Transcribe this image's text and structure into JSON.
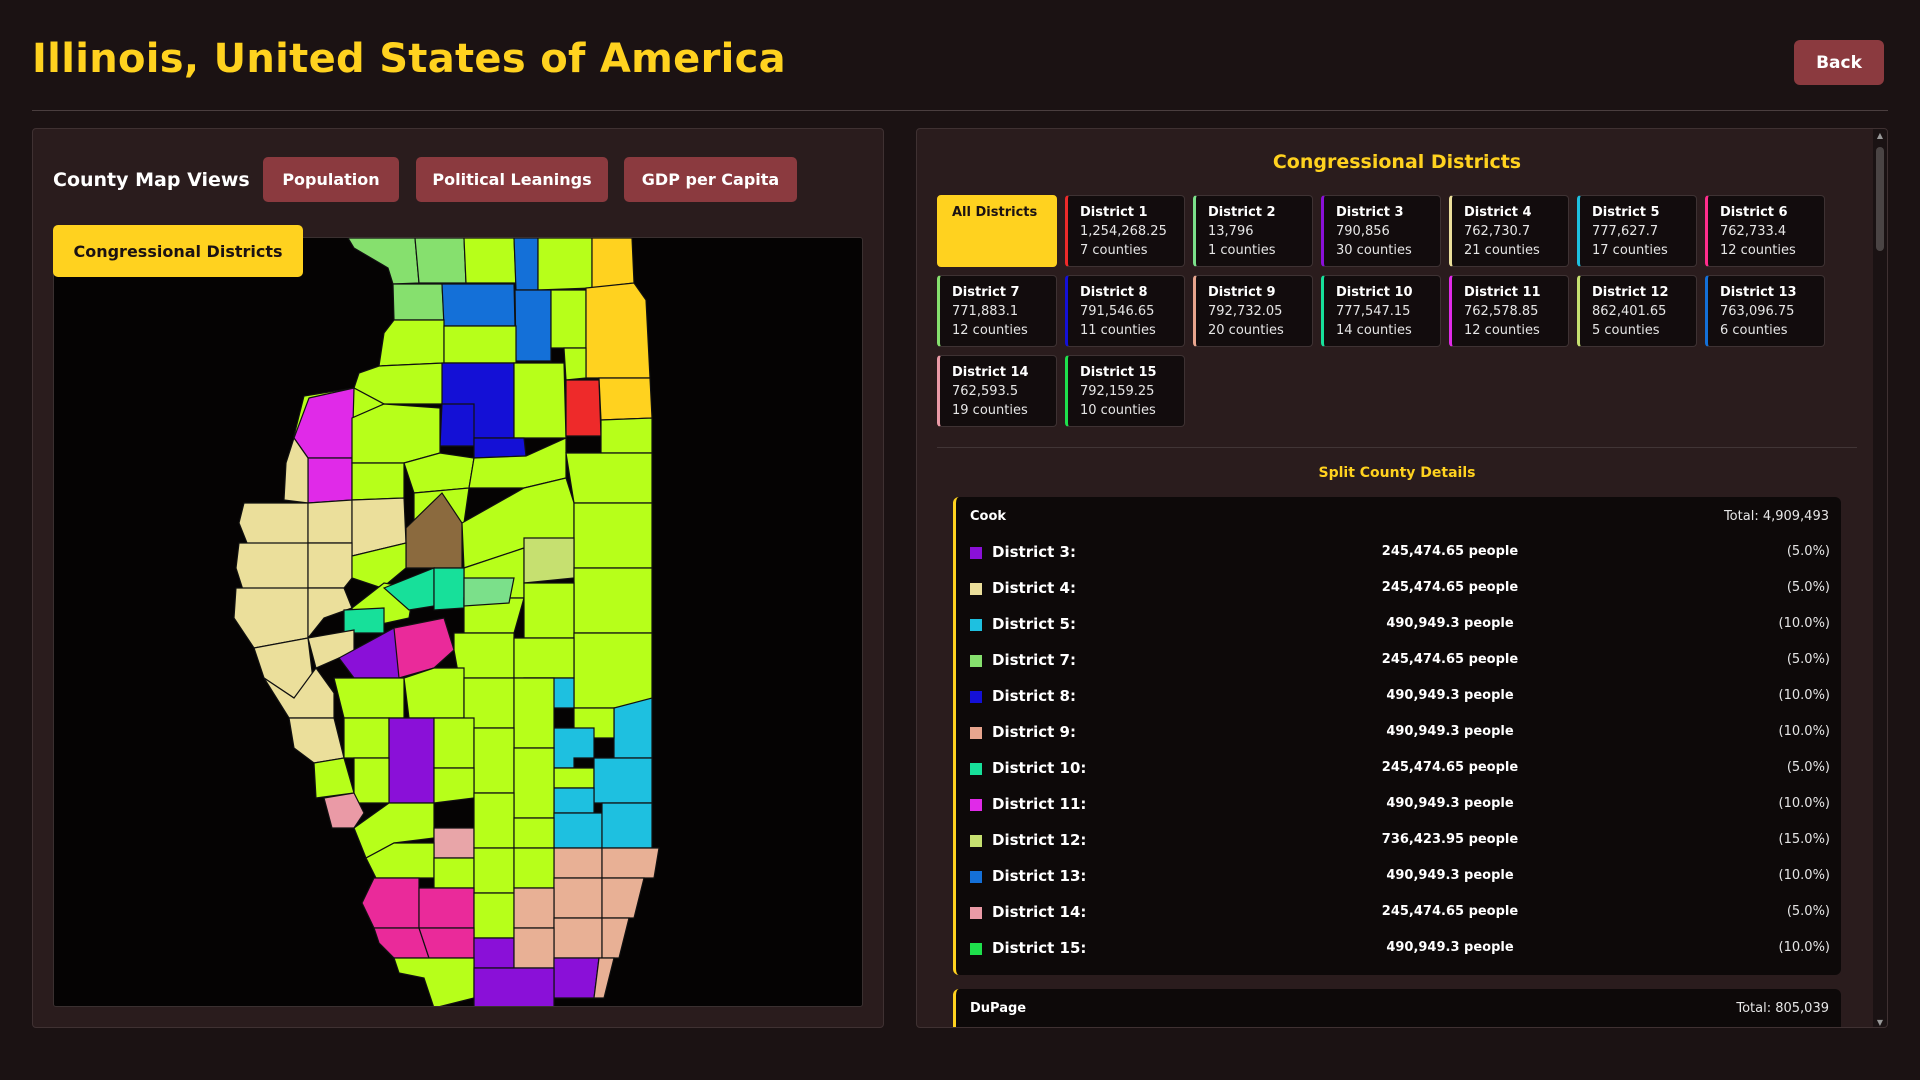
{
  "header": {
    "title": "Illinois, United States of America",
    "back_label": "Back"
  },
  "map_views": {
    "label": "County Map Views",
    "buttons": [
      "Population",
      "Political Leanings",
      "GDP per Capita",
      "Congressional Districts"
    ],
    "active": "Congressional Districts"
  },
  "districts_panel": {
    "title": "Congressional Districts",
    "all_label": "All Districts",
    "districts": [
      {
        "name": "District 1",
        "population": "1,254,268.25",
        "counties": "7 counties",
        "color": "#ee2a2a"
      },
      {
        "name": "District 2",
        "population": "13,796",
        "counties": "1 counties",
        "color": "#7be08a"
      },
      {
        "name": "District 3",
        "population": "790,856",
        "counties": "30 counties",
        "color": "#8a10d8"
      },
      {
        "name": "District 4",
        "population": "762,730.7",
        "counties": "21 counties",
        "color": "#ebdf9b"
      },
      {
        "name": "District 5",
        "population": "777,627.7",
        "counties": "17 counties",
        "color": "#1ec0e0"
      },
      {
        "name": "District 6",
        "population": "762,733.4",
        "counties": "12 counties",
        "color": "#ff2d8c"
      },
      {
        "name": "District 7",
        "population": "771,883.1",
        "counties": "12 counties",
        "color": "#86e06e"
      },
      {
        "name": "District 8",
        "population": "791,546.65",
        "counties": "11 counties",
        "color": "#1410d6"
      },
      {
        "name": "District 9",
        "population": "792,732.05",
        "counties": "20 counties",
        "color": "#e8a58e"
      },
      {
        "name": "District 10",
        "population": "777,547.15",
        "counties": "14 counties",
        "color": "#17e09a"
      },
      {
        "name": "District 11",
        "population": "762,578.85",
        "counties": "12 counties",
        "color": "#e02ae8"
      },
      {
        "name": "District 12",
        "population": "862,401.65",
        "counties": "5 counties",
        "color": "#c6e070"
      },
      {
        "name": "District 13",
        "population": "763,096.75",
        "counties": "6 counties",
        "color": "#1470d8"
      },
      {
        "name": "District 14",
        "population": "762,593.5",
        "counties": "19 counties",
        "color": "#ea9aa6"
      },
      {
        "name": "District 15",
        "population": "792,159.25",
        "counties": "10 counties",
        "color": "#1ee04c"
      }
    ]
  },
  "split_details": {
    "title": "Split County Details",
    "counties": [
      {
        "name": "Cook",
        "total": "Total: 4,909,493",
        "rows": [
          {
            "district": "District 3:",
            "people": "245,474.65 people",
            "pct": "(5.0%)",
            "color": "#8a10d8"
          },
          {
            "district": "District 4:",
            "people": "245,474.65 people",
            "pct": "(5.0%)",
            "color": "#ebdf9b"
          },
          {
            "district": "District 5:",
            "people": "490,949.3 people",
            "pct": "(10.0%)",
            "color": "#1ec0e0"
          },
          {
            "district": "District 7:",
            "people": "245,474.65 people",
            "pct": "(5.0%)",
            "color": "#86e06e"
          },
          {
            "district": "District 8:",
            "people": "490,949.3 people",
            "pct": "(10.0%)",
            "color": "#1410d6"
          },
          {
            "district": "District 9:",
            "people": "490,949.3 people",
            "pct": "(10.0%)",
            "color": "#e8a58e"
          },
          {
            "district": "District 10:",
            "people": "245,474.65 people",
            "pct": "(5.0%)",
            "color": "#17e09a"
          },
          {
            "district": "District 11:",
            "people": "490,949.3 people",
            "pct": "(10.0%)",
            "color": "#e02ae8"
          },
          {
            "district": "District 12:",
            "people": "736,423.95 people",
            "pct": "(15.0%)",
            "color": "#c6e070"
          },
          {
            "district": "District 13:",
            "people": "490,949.3 people",
            "pct": "(10.0%)",
            "color": "#1470d8"
          },
          {
            "district": "District 14:",
            "people": "245,474.65 people",
            "pct": "(5.0%)",
            "color": "#ea9aa6"
          },
          {
            "district": "District 15:",
            "people": "490,949.3 people",
            "pct": "(10.0%)",
            "color": "#1ee04c"
          }
        ]
      },
      {
        "name": "DuPage",
        "total": "Total: 805,039",
        "rows": []
      }
    ]
  },
  "colors": {
    "accent": "#ffd21f",
    "button": "#8b3a3f",
    "background": "#1b1213",
    "panel": "#2a1c1d"
  }
}
